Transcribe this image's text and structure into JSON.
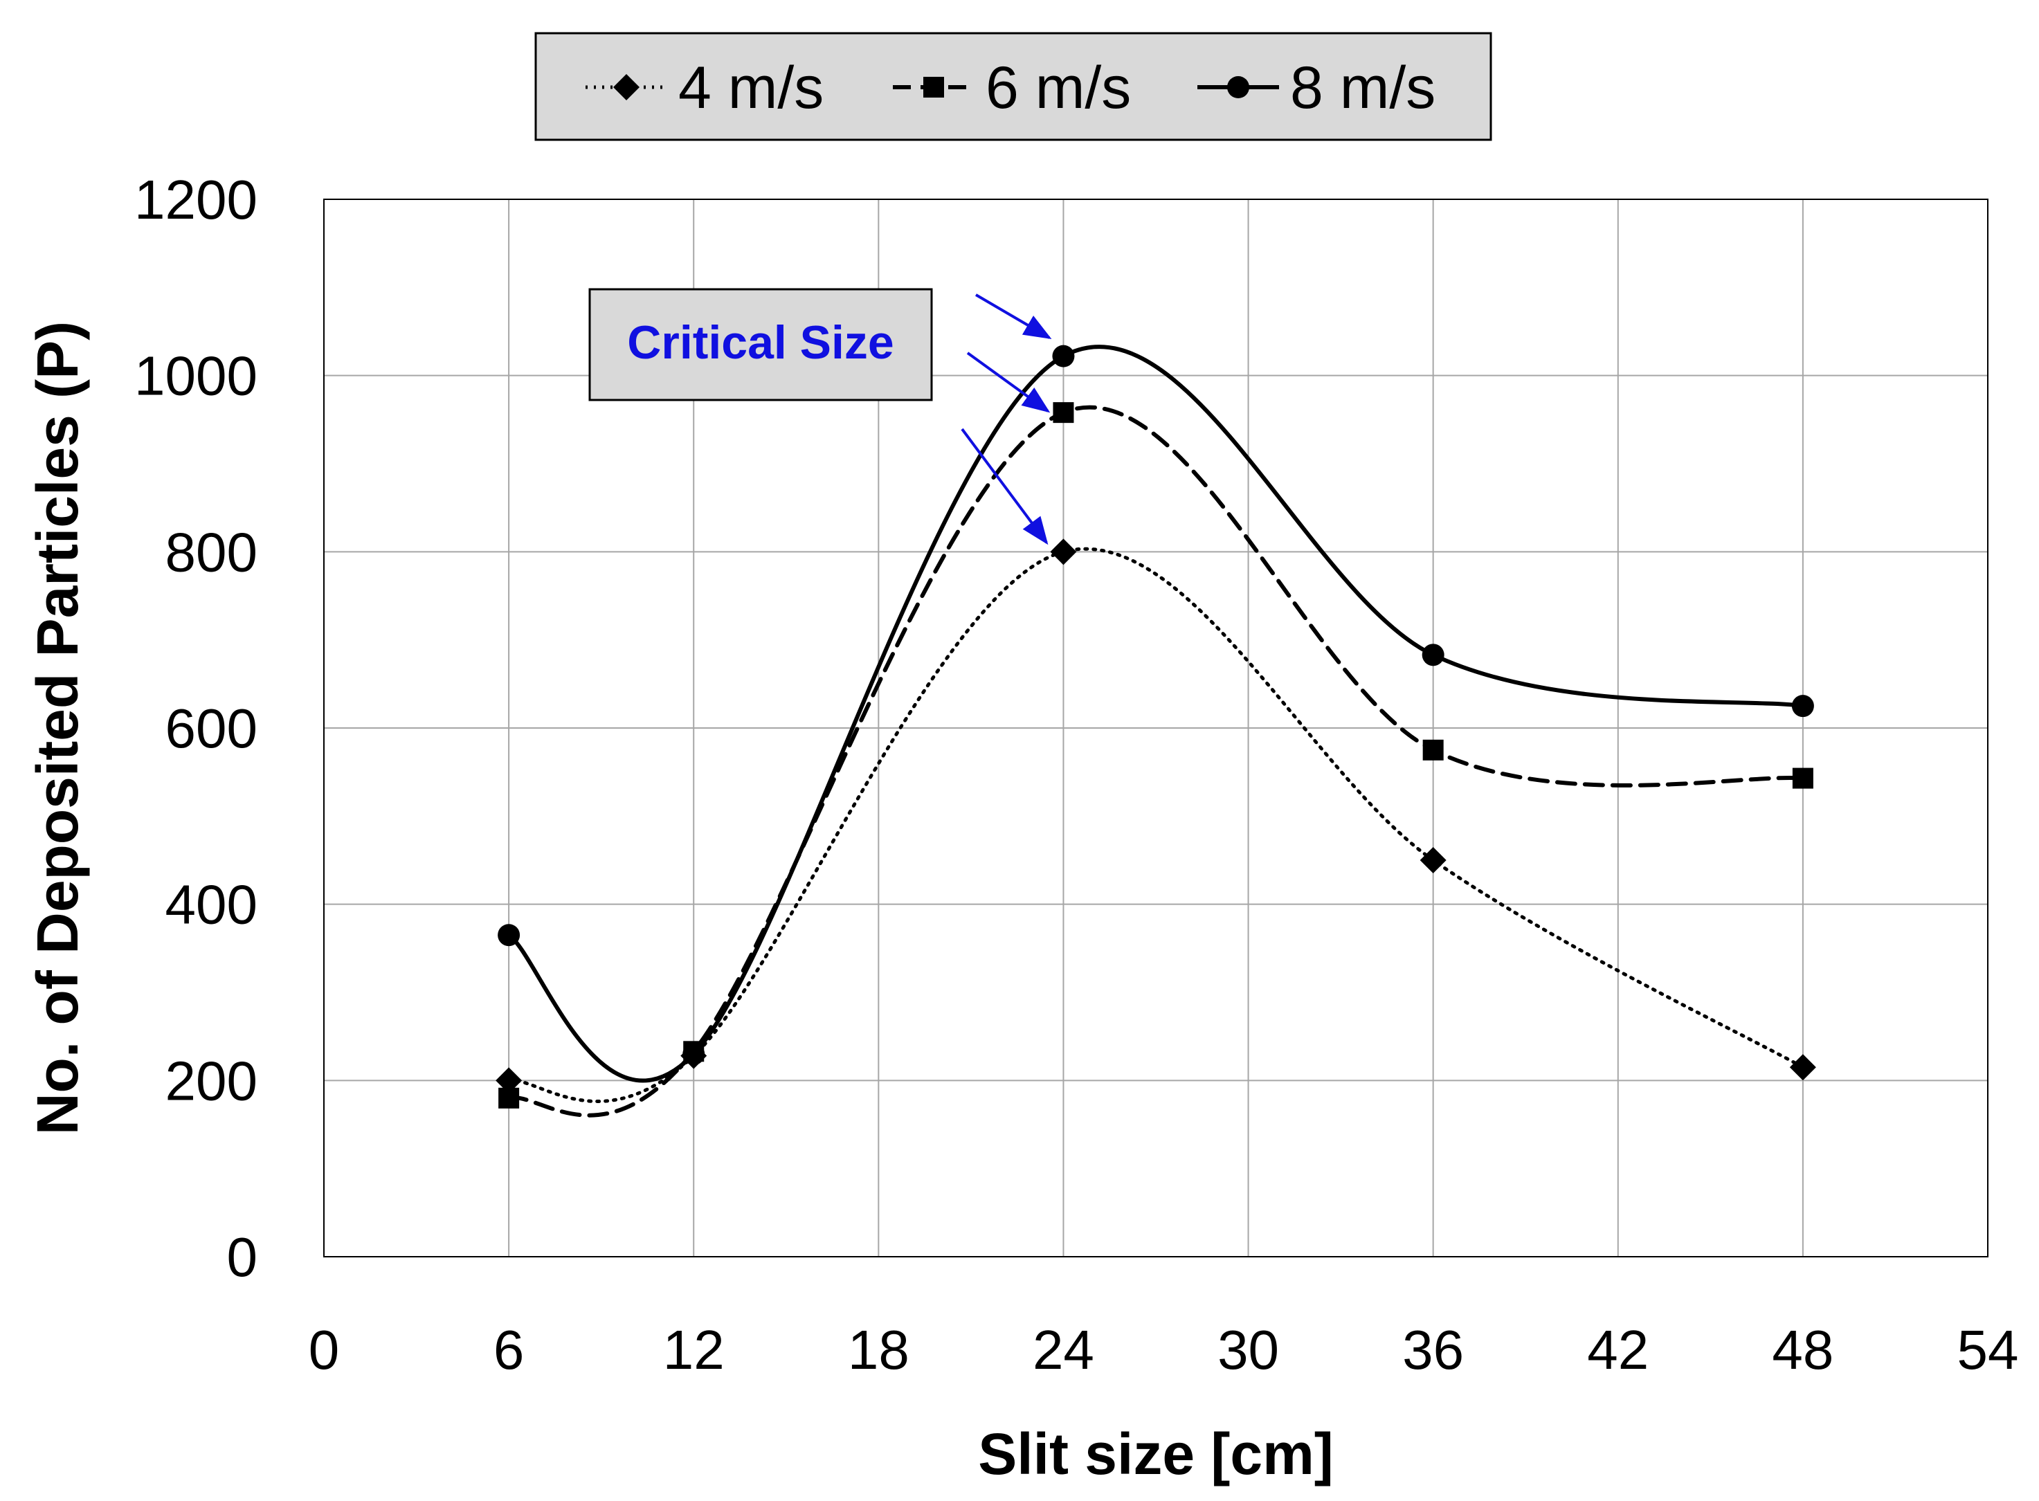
{
  "chart_data": {
    "type": "line",
    "title": "",
    "xlabel": "Slit size [cm]",
    "ylabel": "No. of Deposited Particles (P)",
    "xlim": [
      0,
      54
    ],
    "ylim": [
      0,
      1200
    ],
    "xticks": [
      0,
      6,
      12,
      18,
      24,
      30,
      36,
      42,
      48,
      54
    ],
    "yticks": [
      0,
      200,
      400,
      600,
      800,
      1000,
      1200
    ],
    "xtick_labels": [
      "0",
      "6",
      "12",
      "18",
      "24",
      "30",
      "36",
      "42",
      "48",
      "54"
    ],
    "ytick_labels": [
      "0",
      "200",
      "400",
      "600",
      "800",
      "1000",
      "1200"
    ],
    "grid": true,
    "legend_position": "top-center",
    "x": [
      6,
      12,
      24,
      36,
      48
    ],
    "series": [
      {
        "name": "4 m/s",
        "values": [
          200,
          228,
          800,
          450,
          215
        ],
        "marker": "diamond",
        "line_style": "dotted"
      },
      {
        "name": "6 m/s",
        "values": [
          180,
          233,
          958,
          575,
          543
        ],
        "marker": "square",
        "line_style": "dashed"
      },
      {
        "name": "8 m/s",
        "values": [
          365,
          230,
          1022,
          683,
          625
        ],
        "marker": "circle",
        "line_style": "solid"
      }
    ],
    "annotations": [
      {
        "text": "Critical Size",
        "points_to_x": 24,
        "points_to_series": [
          "4 m/s",
          "6 m/s",
          "8 m/s"
        ],
        "color": "#1010e0"
      }
    ]
  }
}
